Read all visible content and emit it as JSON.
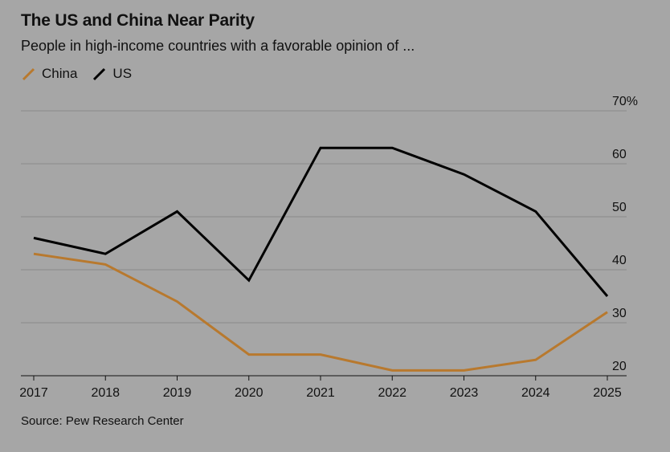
{
  "header": {
    "title": "The US and China Near Parity",
    "subtitle": "People in high-income countries with a favorable opinion of ..."
  },
  "legend": [
    {
      "name": "China",
      "color": "#b8792e"
    },
    {
      "name": "US",
      "color": "#000000"
    }
  ],
  "footer": {
    "source": "Source: Pew Research Center"
  },
  "chart_data": {
    "type": "line",
    "title": "The US and China Near Parity",
    "subtitle": "People in high-income countries with a favorable opinion of ...",
    "xlabel": "",
    "ylabel": "",
    "x": [
      "2017",
      "2018",
      "2019",
      "2020",
      "2021",
      "2022",
      "2023",
      "2024",
      "2025"
    ],
    "series": [
      {
        "name": "China",
        "color": "#b8792e",
        "values": [
          43,
          41,
          34,
          24,
          24,
          21,
          21,
          23,
          32
        ]
      },
      {
        "name": "US",
        "color": "#000000",
        "values": [
          46,
          43,
          51,
          38,
          63,
          63,
          58,
          51,
          35
        ]
      }
    ],
    "ylim": [
      20,
      70
    ],
    "yticks": [
      20,
      30,
      40,
      50,
      60,
      70
    ],
    "ytick_labels": [
      "20",
      "30",
      "40",
      "50",
      "60",
      "70%"
    ],
    "grid": true,
    "y_axis_side": "right",
    "legend_position": "top-left"
  }
}
